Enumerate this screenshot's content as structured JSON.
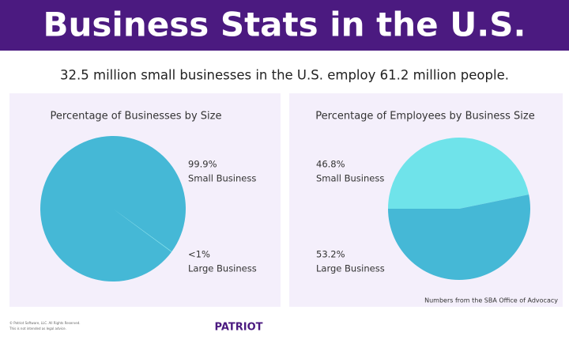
{
  "header": {
    "title": "Business Stats in the U.S."
  },
  "subtitle": "32.5 million small businesses in the U.S. employ 61.2 million people.",
  "chart_data": [
    {
      "type": "pie",
      "title": "Percentage of Businesses by Size",
      "categories": [
        "Small Business",
        "Large Business"
      ],
      "values": [
        99.9,
        0.1
      ],
      "value_labels": [
        "99.9%",
        "<1%"
      ],
      "colors": [
        "#45b8d6",
        "#6fe3ea"
      ]
    },
    {
      "type": "pie",
      "title": "Percentage of Employees by Business Size",
      "categories": [
        "Small Business",
        "Large Business"
      ],
      "values": [
        46.8,
        53.2
      ],
      "value_labels": [
        "46.8%",
        "53.2%"
      ],
      "colors": [
        "#6fe3ea",
        "#45b8d6"
      ]
    }
  ],
  "source": "Numbers from the SBA Office of Advocacy",
  "footer": {
    "copyright": "© Patriot Software, LLC. All Rights Reserved.",
    "disclaimer": "This is not intended as legal advice.",
    "brand": "PATRIOT"
  }
}
